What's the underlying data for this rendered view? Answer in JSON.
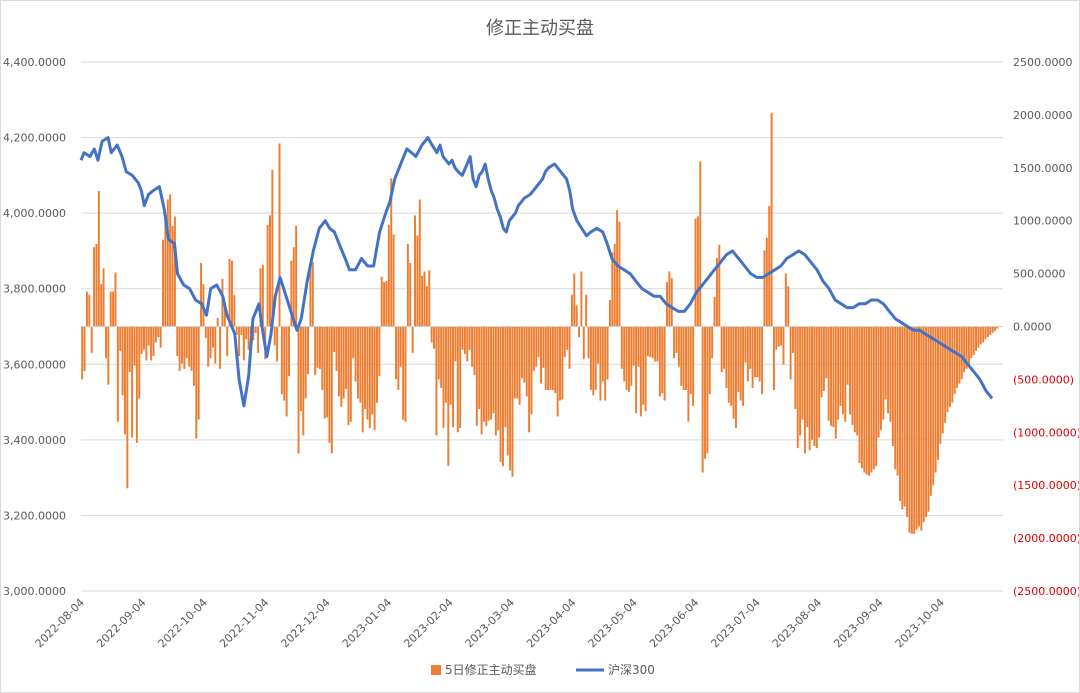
{
  "chart_data": {
    "type": "bar+line",
    "title": "修正主动买盘",
    "colors": {
      "bar": "#ED7D31",
      "line": "#4472C4",
      "negative_tick": "#E00000"
    },
    "x_tick_labels": [
      "2022-08-04",
      "2022-09-04",
      "2022-10-04",
      "2022-11-04",
      "2022-12-04",
      "2023-01-04",
      "2023-02-04",
      "2023-03-04",
      "2023-04-04",
      "2023-05-04",
      "2023-06-04",
      "2023-07-04",
      "2023-08-04",
      "2023-09-04",
      "2023-10-04"
    ],
    "left_axis": {
      "ylim": [
        3000,
        4400
      ],
      "ticks": [
        3000,
        3200,
        3400,
        3600,
        3800,
        4000,
        4200,
        4400
      ],
      "tick_labels": [
        "3,000.0000",
        "3,200.0000",
        "3,400.0000",
        "3,600.0000",
        "3,800.0000",
        "4,000.0000",
        "4,200.0000",
        "4,400.0000"
      ]
    },
    "right_axis": {
      "ylim": [
        -2500,
        2500
      ],
      "ticks": [
        2500,
        2000,
        1500,
        1000,
        500,
        0,
        -500,
        -1000,
        -1500,
        -2000,
        -2500
      ],
      "tick_labels": [
        "2500.0000",
        "2000.0000",
        "1500.0000",
        "1000.0000",
        "500.0000",
        "0.0000",
        "(500.0000)",
        "(1000.0000)",
        "(1500.0000)",
        "(2000.0000)",
        "(2500.0000)"
      ]
    },
    "series": [
      {
        "name": "5日修正主动买盘",
        "type": "bar",
        "axis": "right",
        "x_start": 0.0,
        "x_step": 0.19,
        "values": [
          -500,
          -420,
          330,
          300,
          -250,
          750,
          780,
          1280,
          400,
          550,
          -300,
          -550,
          330,
          330,
          510,
          -900,
          -230,
          -650,
          -1020,
          -1530,
          -430,
          -1050,
          -370,
          -1100,
          -680,
          -260,
          -220,
          -320,
          -180,
          -320,
          -280,
          -150,
          -100,
          -200,
          820,
          1050,
          1200,
          1250,
          950,
          1040,
          -280,
          -420,
          -350,
          -400,
          -300,
          -380,
          -420,
          -560,
          -1060,
          -880,
          600,
          400,
          -110,
          -380,
          -300,
          -200,
          -350,
          80,
          -400,
          450,
          220,
          -280,
          640,
          620,
          300,
          -80,
          -280,
          -80,
          -320,
          -120,
          -220,
          -70,
          -130,
          -60,
          -250,
          550,
          580,
          -310,
          960,
          1050,
          1480,
          -180,
          -330,
          1730,
          -640,
          -700,
          -850,
          -470,
          620,
          750,
          950,
          -1200,
          -800,
          -1030,
          -680,
          -450,
          580,
          610,
          -460,
          -390,
          -400,
          -600,
          -870,
          -860,
          -1100,
          -1200,
          -240,
          -420,
          -660,
          -760,
          -680,
          -590,
          -930,
          -900,
          -300,
          -520,
          -680,
          -720,
          -1000,
          -780,
          -880,
          -960,
          -830,
          -980,
          -720,
          -470,
          470,
          420,
          430,
          960,
          1400,
          870,
          -500,
          -600,
          -380,
          -880,
          -900,
          780,
          600,
          -250,
          1050,
          860,
          1200,
          480,
          520,
          380,
          530,
          -150,
          -210,
          -1030,
          -500,
          -580,
          -960,
          -720,
          -1320,
          -740,
          -950,
          -330,
          -1000,
          -960,
          -220,
          -260,
          -330,
          -220,
          -380,
          -460,
          -940,
          -780,
          -1020,
          -900,
          -940,
          -890,
          -880,
          -820,
          -1030,
          -980,
          -1280,
          -1320,
          -950,
          -1220,
          -1360,
          -1420,
          -680,
          -680,
          -740,
          -490,
          -530,
          -660,
          -1000,
          -830,
          -420,
          -380,
          -290,
          -540,
          -390,
          -600,
          -600,
          -600,
          -600,
          -630,
          -850,
          -700,
          -690,
          -290,
          -220,
          -400,
          300,
          500,
          200,
          -100,
          520,
          -310,
          300,
          -300,
          -600,
          -650,
          -600,
          -350,
          -700,
          -520,
          -700,
          -500,
          250,
          700,
          780,
          1100,
          990,
          -400,
          -520,
          -600,
          -620,
          -560,
          -370,
          -820,
          -380,
          -850,
          -740,
          -800,
          -280,
          -290,
          -300,
          -330,
          -330,
          -660,
          -630,
          -700,
          420,
          520,
          460,
          -300,
          -250,
          -380,
          -560,
          -600,
          -600,
          -900,
          -640,
          -750,
          1020,
          1040,
          1560,
          -1380,
          -1250,
          -1200,
          -640,
          -300,
          280,
          650,
          770,
          -430,
          -400,
          -580,
          -720,
          -750,
          -870,
          -960,
          -620,
          -700,
          -750,
          -340,
          -520,
          -400,
          -580,
          -480,
          -480,
          -520,
          -640,
          720,
          840,
          1140,
          2020,
          -600,
          -220,
          -190,
          -180,
          -360,
          500,
          380,
          -500,
          -250,
          -780,
          -1150,
          -1030,
          -880,
          -1200,
          -950,
          -1170,
          -1070,
          -1130,
          -1150,
          -1050,
          -670,
          -610,
          -490,
          -890,
          -940,
          -950,
          -1060,
          -880,
          -750,
          -830,
          -900,
          -550,
          -830,
          -930,
          -1000,
          -1030,
          -1290,
          -1340,
          -1380,
          -1400,
          -1410,
          -1380,
          -1350,
          -1320,
          -1050,
          -980,
          -880,
          -690,
          -820,
          -900,
          -1130,
          -1350,
          -1410,
          -1650,
          -1730,
          -1700,
          -1800,
          -1950,
          -1960,
          -1960,
          -1920,
          -1890,
          -1930,
          -1850,
          -1800,
          -1750,
          -1600,
          -1500,
          -1380,
          -1260,
          -1110,
          -1010,
          -910,
          -810,
          -760,
          -720,
          -640,
          -580,
          -540,
          -500,
          -430,
          -400,
          -360,
          -300,
          -270,
          -230,
          -200,
          -170,
          -150,
          -120,
          -100,
          -80,
          -60,
          -40,
          -20,
          0
        ]
      },
      {
        "name": "沪深300",
        "type": "line",
        "axis": "left",
        "points": [
          [
            0.0,
            4140
          ],
          [
            0.05,
            4160
          ],
          [
            0.15,
            4150
          ],
          [
            0.22,
            4170
          ],
          [
            0.28,
            4140
          ],
          [
            0.35,
            4190
          ],
          [
            0.45,
            4200
          ],
          [
            0.5,
            4160
          ],
          [
            0.6,
            4180
          ],
          [
            0.68,
            4150
          ],
          [
            0.75,
            4110
          ],
          [
            0.85,
            4100
          ],
          [
            0.95,
            4080
          ],
          [
            1.0,
            4060
          ],
          [
            1.05,
            4020
          ],
          [
            1.12,
            4050
          ],
          [
            1.2,
            4060
          ],
          [
            1.3,
            4070
          ],
          [
            1.38,
            4010
          ],
          [
            1.45,
            3930
          ],
          [
            1.55,
            3920
          ],
          [
            1.6,
            3840
          ],
          [
            1.7,
            3810
          ],
          [
            1.8,
            3800
          ],
          [
            1.9,
            3770
          ],
          [
            2.0,
            3760
          ],
          [
            2.08,
            3730
          ],
          [
            2.15,
            3800
          ],
          [
            2.25,
            3810
          ],
          [
            2.35,
            3780
          ],
          [
            2.42,
            3730
          ],
          [
            2.5,
            3700
          ],
          [
            2.55,
            3680
          ],
          [
            2.62,
            3560
          ],
          [
            2.7,
            3490
          ],
          [
            2.78,
            3570
          ],
          [
            2.85,
            3720
          ],
          [
            2.95,
            3760
          ],
          [
            3.0,
            3700
          ],
          [
            3.08,
            3620
          ],
          [
            3.15,
            3680
          ],
          [
            3.22,
            3780
          ],
          [
            3.3,
            3830
          ],
          [
            3.4,
            3780
          ],
          [
            3.5,
            3730
          ],
          [
            3.58,
            3690
          ],
          [
            3.65,
            3720
          ],
          [
            3.75,
            3820
          ],
          [
            3.85,
            3900
          ],
          [
            3.95,
            3960
          ],
          [
            4.05,
            3980
          ],
          [
            4.12,
            3960
          ],
          [
            4.2,
            3950
          ],
          [
            4.3,
            3910
          ],
          [
            4.38,
            3880
          ],
          [
            4.45,
            3850
          ],
          [
            4.55,
            3850
          ],
          [
            4.65,
            3880
          ],
          [
            4.75,
            3860
          ],
          [
            4.85,
            3860
          ],
          [
            4.95,
            3950
          ],
          [
            5.05,
            4000
          ],
          [
            5.12,
            4030
          ],
          [
            5.2,
            4090
          ],
          [
            5.3,
            4130
          ],
          [
            5.4,
            4170
          ],
          [
            5.48,
            4160
          ],
          [
            5.55,
            4150
          ],
          [
            5.65,
            4180
          ],
          [
            5.75,
            4200
          ],
          [
            5.82,
            4180
          ],
          [
            5.9,
            4160
          ],
          [
            5.95,
            4180
          ],
          [
            6.0,
            4150
          ],
          [
            6.05,
            4140
          ],
          [
            6.1,
            4130
          ],
          [
            6.15,
            4140
          ],
          [
            6.2,
            4120
          ],
          [
            6.25,
            4110
          ],
          [
            6.32,
            4100
          ],
          [
            6.4,
            4130
          ],
          [
            6.45,
            4150
          ],
          [
            6.5,
            4090
          ],
          [
            6.55,
            4070
          ],
          [
            6.6,
            4100
          ],
          [
            6.65,
            4110
          ],
          [
            6.7,
            4130
          ],
          [
            6.75,
            4090
          ],
          [
            6.8,
            4060
          ],
          [
            6.85,
            4040
          ],
          [
            6.9,
            4010
          ],
          [
            6.95,
            3990
          ],
          [
            7.0,
            3960
          ],
          [
            7.05,
            3950
          ],
          [
            7.1,
            3980
          ],
          [
            7.15,
            3990
          ],
          [
            7.2,
            4000
          ],
          [
            7.25,
            4020
          ],
          [
            7.3,
            4030
          ],
          [
            7.35,
            4040
          ],
          [
            7.45,
            4050
          ],
          [
            7.55,
            4070
          ],
          [
            7.65,
            4090
          ],
          [
            7.7,
            4110
          ],
          [
            7.75,
            4120
          ],
          [
            7.85,
            4130
          ],
          [
            7.95,
            4110
          ],
          [
            8.05,
            4090
          ],
          [
            8.1,
            4060
          ],
          [
            8.15,
            4010
          ],
          [
            8.22,
            3980
          ],
          [
            8.3,
            3960
          ],
          [
            8.38,
            3940
          ],
          [
            8.45,
            3950
          ],
          [
            8.55,
            3960
          ],
          [
            8.65,
            3950
          ],
          [
            8.72,
            3920
          ],
          [
            8.8,
            3880
          ],
          [
            8.9,
            3860
          ],
          [
            9.0,
            3850
          ],
          [
            9.1,
            3840
          ],
          [
            9.2,
            3820
          ],
          [
            9.3,
            3800
          ],
          [
            9.4,
            3790
          ],
          [
            9.5,
            3780
          ],
          [
            9.6,
            3780
          ],
          [
            9.7,
            3760
          ],
          [
            9.8,
            3750
          ],
          [
            9.9,
            3740
          ],
          [
            10.0,
            3740
          ],
          [
            10.1,
            3760
          ],
          [
            10.2,
            3790
          ],
          [
            10.3,
            3810
          ],
          [
            10.4,
            3830
          ],
          [
            10.5,
            3850
          ],
          [
            10.6,
            3870
          ],
          [
            10.7,
            3890
          ],
          [
            10.8,
            3900
          ],
          [
            10.9,
            3880
          ],
          [
            11.0,
            3860
          ],
          [
            11.1,
            3840
          ],
          [
            11.2,
            3830
          ],
          [
            11.3,
            3830
          ],
          [
            11.4,
            3840
          ],
          [
            11.5,
            3850
          ],
          [
            11.6,
            3860
          ],
          [
            11.7,
            3880
          ],
          [
            11.8,
            3890
          ],
          [
            11.9,
            3900
          ],
          [
            12.0,
            3890
          ],
          [
            12.1,
            3870
          ],
          [
            12.2,
            3850
          ],
          [
            12.3,
            3820
          ],
          [
            12.4,
            3800
          ],
          [
            12.5,
            3770
          ],
          [
            12.6,
            3760
          ],
          [
            12.7,
            3750
          ],
          [
            12.8,
            3750
          ],
          [
            12.9,
            3760
          ],
          [
            13.0,
            3760
          ],
          [
            13.1,
            3770
          ],
          [
            13.2,
            3770
          ],
          [
            13.3,
            3760
          ],
          [
            13.4,
            3740
          ],
          [
            13.5,
            3720
          ],
          [
            13.6,
            3710
          ],
          [
            13.7,
            3700
          ],
          [
            13.8,
            3690
          ],
          [
            13.9,
            3690
          ],
          [
            14.0,
            3680
          ],
          [
            14.1,
            3670
          ],
          [
            14.2,
            3660
          ],
          [
            14.3,
            3650
          ],
          [
            14.4,
            3640
          ],
          [
            14.5,
            3630
          ],
          [
            14.6,
            3620
          ],
          [
            14.7,
            3600
          ],
          [
            14.8,
            3580
          ],
          [
            14.9,
            3560
          ],
          [
            15.0,
            3530
          ],
          [
            15.1,
            3510
          ]
        ]
      }
    ]
  }
}
